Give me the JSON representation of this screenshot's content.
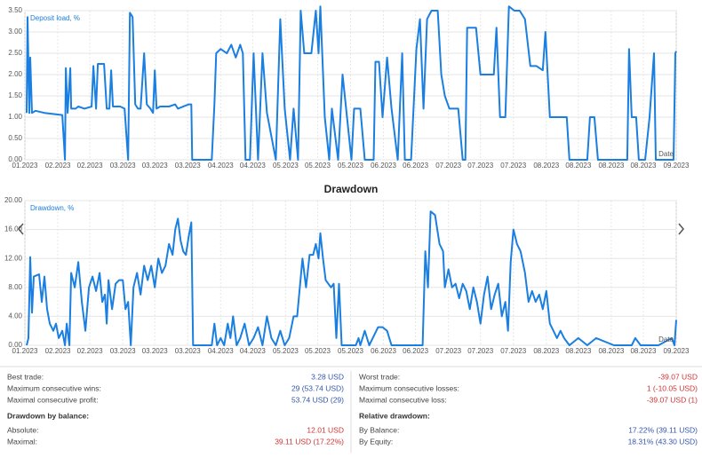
{
  "chart_data": [
    {
      "type": "line",
      "label": "Deposit load, %",
      "xlabel": "Date",
      "color": "#1a7fe0",
      "grid": true,
      "xlim": [
        0,
        732
      ],
      "ylim": [
        0,
        3.5
      ],
      "yticks": [
        {
          "value": 0,
          "label": "0.00"
        },
        {
          "value": 0.5,
          "label": "0.50"
        },
        {
          "value": 1,
          "label": "1.00"
        },
        {
          "value": 1.5,
          "label": "1.50"
        },
        {
          "value": 2,
          "label": "2.00"
        },
        {
          "value": 2.5,
          "label": "2.50"
        },
        {
          "value": 3,
          "label": "3.00"
        },
        {
          "value": 3.5,
          "label": "3.50"
        }
      ],
      "xticks": [
        {
          "value": 0,
          "label": "01.2023"
        },
        {
          "value": 37,
          "label": "02.2023"
        },
        {
          "value": 73,
          "label": "02.2023"
        },
        {
          "value": 110,
          "label": "03.2023"
        },
        {
          "value": 146,
          "label": "03.2023"
        },
        {
          "value": 183,
          "label": "03.2023"
        },
        {
          "value": 220,
          "label": "04.2023"
        },
        {
          "value": 256,
          "label": "04.2023"
        },
        {
          "value": 293,
          "label": "05.2023"
        },
        {
          "value": 329,
          "label": "05.2023"
        },
        {
          "value": 366,
          "label": "05.2023"
        },
        {
          "value": 403,
          "label": "06.2023"
        },
        {
          "value": 439,
          "label": "06.2023"
        },
        {
          "value": 476,
          "label": "07.2023"
        },
        {
          "value": 512,
          "label": "07.2023"
        },
        {
          "value": 549,
          "label": "07.2023"
        },
        {
          "value": 586,
          "label": "08.2023"
        },
        {
          "value": 622,
          "label": "08.2023"
        },
        {
          "value": 659,
          "label": "08.2023"
        },
        {
          "value": 695,
          "label": "08.2023"
        },
        {
          "value": 732,
          "label": "09.2023"
        }
      ],
      "x": [
        2,
        3,
        5,
        6,
        8,
        12,
        22,
        42,
        45,
        46,
        48,
        51,
        52,
        57,
        60,
        67,
        75,
        77,
        80,
        82,
        89,
        92,
        95,
        97,
        99,
        107,
        112,
        116,
        118,
        121,
        124,
        127,
        130,
        134,
        137,
        141,
        144,
        146,
        148,
        152,
        162,
        169,
        172,
        184,
        187,
        188,
        210,
        213,
        215,
        220,
        227,
        232,
        237,
        242,
        245,
        248,
        253,
        257,
        262,
        267,
        272,
        282,
        287,
        292,
        298,
        302,
        307,
        310,
        314,
        322,
        327,
        330,
        332,
        337,
        342,
        345,
        352,
        357,
        362,
        367,
        370,
        377,
        382,
        392,
        394,
        398,
        402,
        407,
        412,
        419,
        424,
        427,
        434,
        440,
        444,
        448,
        452,
        457,
        464,
        468,
        472,
        477,
        487,
        492,
        495,
        497,
        502,
        507,
        512,
        517,
        522,
        527,
        530,
        534,
        540,
        544,
        550,
        556,
        562,
        568,
        575,
        582,
        585,
        590,
        597,
        602,
        609,
        612,
        617,
        632,
        635,
        640,
        644,
        677,
        679,
        682,
        687,
        690,
        697,
        702,
        707,
        709,
        729,
        731,
        732
      ],
      "values": [
        1.1,
        3.35,
        1.1,
        2.4,
        1.1,
        1.15,
        1.1,
        1.05,
        0,
        2.15,
        1.1,
        2.15,
        1.2,
        1.2,
        1.25,
        1.2,
        1.25,
        2.2,
        1.2,
        2.25,
        2.25,
        1.2,
        1.2,
        2.1,
        1.25,
        1.25,
        1.2,
        0,
        3.45,
        3.35,
        1.3,
        1.2,
        1.2,
        2.5,
        1.3,
        1.2,
        1.1,
        2.1,
        1.2,
        1.25,
        1.25,
        1.3,
        1.2,
        1.3,
        1.3,
        0,
        0,
        1.3,
        2.5,
        2.6,
        2.5,
        2.7,
        2.4,
        2.7,
        2.5,
        0,
        0,
        2.5,
        0,
        2.5,
        1.1,
        0,
        3.3,
        1.2,
        0,
        1.2,
        0,
        3.5,
        2.5,
        2.5,
        3.5,
        2.5,
        3.6,
        1.0,
        0,
        1.2,
        0,
        2.0,
        1.0,
        0,
        1.2,
        1.2,
        0,
        0,
        2.3,
        2.3,
        1.0,
        2.4,
        1.2,
        0,
        2.5,
        0,
        0,
        2.6,
        3.3,
        1.2,
        3.3,
        3.5,
        3.5,
        2.0,
        1.5,
        1.2,
        1.2,
        0,
        0,
        3.1,
        3.1,
        3.1,
        2.0,
        2.0,
        2.0,
        2.0,
        3.1,
        1.0,
        1.0,
        3.6,
        3.5,
        3.5,
        3.3,
        2.2,
        2.2,
        2.1,
        3.0,
        1.0,
        1.0,
        1.0,
        1.0,
        0,
        0,
        0,
        1.0,
        1.0,
        0,
        0,
        2.6,
        1.0,
        1.0,
        0,
        0,
        1.0,
        2.5,
        0,
        0,
        2.5,
        2.55
      ]
    },
    {
      "type": "line",
      "title": "Drawdown",
      "label": "Drawdown, %",
      "xlabel": "Date",
      "color": "#1a7fe0",
      "grid": true,
      "xlim": [
        0,
        732
      ],
      "ylim": [
        0,
        20
      ],
      "yticks": [
        {
          "value": 0,
          "label": "0.00"
        },
        {
          "value": 4,
          "label": "4.00"
        },
        {
          "value": 8,
          "label": "8.00"
        },
        {
          "value": 12,
          "label": "12.00"
        },
        {
          "value": 16,
          "label": "16.00"
        },
        {
          "value": 20,
          "label": "20.00"
        }
      ],
      "xticks": [
        {
          "value": 0,
          "label": "01.2023"
        },
        {
          "value": 37,
          "label": "02.2023"
        },
        {
          "value": 73,
          "label": "02.2023"
        },
        {
          "value": 110,
          "label": "03.2023"
        },
        {
          "value": 146,
          "label": "03.2023"
        },
        {
          "value": 183,
          "label": "03.2023"
        },
        {
          "value": 220,
          "label": "04.2023"
        },
        {
          "value": 256,
          "label": "04.2023"
        },
        {
          "value": 293,
          "label": "05.2023"
        },
        {
          "value": 329,
          "label": "05.2023"
        },
        {
          "value": 366,
          "label": "05.2023"
        },
        {
          "value": 403,
          "label": "06.2023"
        },
        {
          "value": 439,
          "label": "06.2023"
        },
        {
          "value": 476,
          "label": "07.2023"
        },
        {
          "value": 512,
          "label": "07.2023"
        },
        {
          "value": 549,
          "label": "07.2023"
        },
        {
          "value": 586,
          "label": "08.2023"
        },
        {
          "value": 622,
          "label": "08.2023"
        },
        {
          "value": 659,
          "label": "08.2023"
        },
        {
          "value": 695,
          "label": "08.2023"
        },
        {
          "value": 732,
          "label": "09.2023"
        }
      ],
      "x": [
        2,
        4,
        6,
        8,
        10,
        16,
        19,
        22,
        25,
        28,
        32,
        35,
        38,
        42,
        45,
        47,
        50,
        52,
        56,
        60,
        64,
        68,
        72,
        76,
        80,
        84,
        87,
        90,
        92,
        94,
        98,
        102,
        106,
        110,
        113,
        116,
        119,
        122,
        126,
        130,
        134,
        138,
        142,
        146,
        150,
        154,
        158,
        162,
        166,
        169,
        172,
        175,
        178,
        181,
        184,
        187,
        189,
        210,
        213,
        216,
        220,
        224,
        228,
        231,
        234,
        238,
        242,
        247,
        252,
        257,
        262,
        267,
        272,
        277,
        282,
        287,
        292,
        297,
        302,
        306,
        309,
        312,
        316,
        320,
        324,
        327,
        330,
        332,
        335,
        338,
        341,
        344,
        347,
        350,
        353,
        356,
        372,
        375,
        377,
        382,
        387,
        397,
        402,
        407,
        412,
        447,
        450,
        453,
        456,
        461,
        466,
        470,
        472,
        476,
        480,
        484,
        488,
        492,
        496,
        500,
        504,
        508,
        512,
        516,
        520,
        524,
        528,
        532,
        536,
        540,
        543,
        546,
        549,
        553,
        557,
        562,
        566,
        570,
        574,
        578,
        582,
        586,
        590,
        594,
        598,
        602,
        606,
        612,
        622,
        632,
        642,
        662,
        682,
        686,
        692,
        712,
        727,
        730,
        732
      ],
      "values": [
        0,
        1,
        12.2,
        4.5,
        9.5,
        9.8,
        6,
        9.5,
        5,
        3,
        2,
        3,
        1,
        2,
        0,
        3,
        0,
        10,
        8,
        11.5,
        6,
        2,
        8,
        9.5,
        7.5,
        10,
        6,
        7,
        3,
        9,
        5,
        8.5,
        9,
        9,
        5,
        6,
        0,
        8,
        10,
        7,
        11,
        9,
        11,
        8,
        12,
        10,
        11,
        14,
        12.5,
        16,
        17.5,
        14.5,
        13,
        12.5,
        15,
        17,
        0,
        0,
        3,
        0,
        1,
        0,
        3,
        1,
        4,
        0,
        1,
        3,
        0,
        1,
        2.5,
        0,
        4,
        1,
        0,
        2,
        0,
        1,
        4,
        4,
        8,
        12,
        8,
        12.5,
        12.5,
        14,
        12,
        15.5,
        12,
        9,
        8.5,
        8,
        8.5,
        1,
        8.5,
        0,
        0,
        1,
        0,
        2,
        0,
        2.5,
        2.5,
        2,
        0,
        0,
        13,
        8,
        18.5,
        18,
        14,
        13,
        8,
        10.5,
        8,
        8.5,
        6.5,
        8.5,
        7.5,
        5,
        8,
        6,
        3,
        7,
        9.5,
        5,
        7,
        8.5,
        4,
        6,
        2,
        11.5,
        16,
        14,
        13,
        10,
        6,
        7.5,
        6,
        7,
        5,
        7.5,
        3,
        2,
        1,
        2,
        1,
        0,
        1,
        0,
        1,
        0,
        0,
        1,
        0,
        0,
        1,
        0,
        3.5
      ]
    }
  ],
  "stats": {
    "left": [
      {
        "label": "Best trade:",
        "value": "3.28 USD"
      },
      {
        "label": "Maximum consecutive wins:",
        "value": "29 (53.74 USD)"
      },
      {
        "label": "Maximal consecutive profit:",
        "value": "53.74 USD (29)"
      }
    ],
    "left_section": "Drawdown by balance:",
    "left_rows": [
      {
        "label": "Absolute:",
        "value": "12.01 USD"
      },
      {
        "label": "Maximal:",
        "value": "39.11 USD (17.22%)"
      }
    ],
    "right": [
      {
        "label": "Worst trade:",
        "value": "-39.07 USD"
      },
      {
        "label": "Maximum consecutive losses:",
        "value": "1 (-10.05 USD)"
      },
      {
        "label": "Maximal consecutive loss:",
        "value": "-39.07 USD (1)"
      }
    ],
    "right_section": "Relative drawdown:",
    "right_rows": [
      {
        "label": "By Balance:",
        "value": "17.22% (39.11 USD)"
      },
      {
        "label": "By Equity:",
        "value": "18.31% (43.30 USD)"
      }
    ]
  }
}
